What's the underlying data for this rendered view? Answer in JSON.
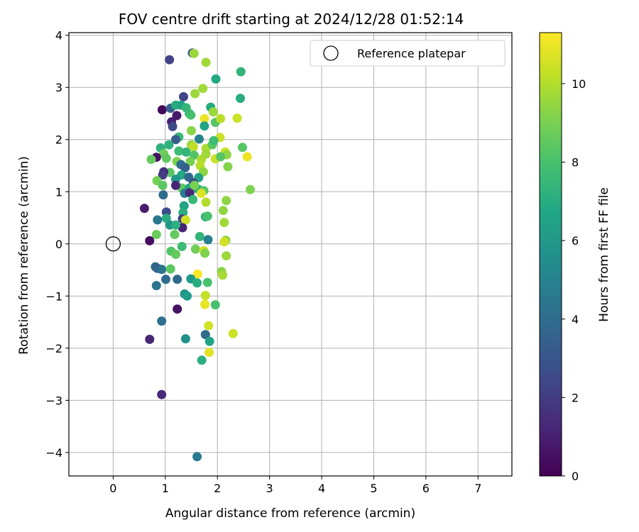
{
  "chart_data": {
    "type": "scatter",
    "title": "FOV centre drift starting at 2024/12/28 01:52:14",
    "xlabel": "Angular distance from reference (arcmin)",
    "ylabel": "Rotation from reference (arcmin)",
    "colorbar_label": "Hours from first FF file",
    "xlim": [
      -0.85,
      7.65
    ],
    "ylim": [
      -4.45,
      4.05
    ],
    "xticks": [
      0,
      1,
      2,
      3,
      4,
      5,
      6,
      7
    ],
    "yticks": [
      -4,
      -3,
      -2,
      -1,
      0,
      1,
      2,
      3,
      4
    ],
    "colorbar_range": [
      0,
      11.3
    ],
    "colorbar_ticks": [
      0,
      2,
      4,
      6,
      8,
      10
    ],
    "colormap": "viridis",
    "grid": true,
    "legend": {
      "location": "upper right",
      "entries": [
        "Reference platepar"
      ]
    },
    "reference_point": {
      "x": 0,
      "y": 0
    },
    "points": [
      [
        1.08,
        3.53,
        2.3
      ],
      [
        1.52,
        3.66,
        3.0
      ],
      [
        1.55,
        3.65,
        9.6
      ],
      [
        1.78,
        3.48,
        9.7
      ],
      [
        1.97,
        3.16,
        6.8
      ],
      [
        2.45,
        3.3,
        7.3
      ],
      [
        2.44,
        2.79,
        7.0
      ],
      [
        1.35,
        2.82,
        2.3
      ],
      [
        1.72,
        2.98,
        9.7
      ],
      [
        1.57,
        2.88,
        9.6
      ],
      [
        0.94,
        2.57,
        0.2
      ],
      [
        1.1,
        2.6,
        3.5
      ],
      [
        1.2,
        2.66,
        7.0
      ],
      [
        1.3,
        2.66,
        6.6
      ],
      [
        1.4,
        2.61,
        7.4
      ],
      [
        1.46,
        2.5,
        7.6
      ],
      [
        1.87,
        2.62,
        6.9
      ],
      [
        1.92,
        2.53,
        9.6
      ],
      [
        1.22,
        2.46,
        0.8
      ],
      [
        1.12,
        2.34,
        1.0
      ],
      [
        1.75,
        2.4,
        11.0
      ],
      [
        1.96,
        2.33,
        8.3
      ],
      [
        2.06,
        2.4,
        10.1
      ],
      [
        2.38,
        2.41,
        10.4
      ],
      [
        1.14,
        2.25,
        2.5
      ],
      [
        1.75,
        2.26,
        6.6
      ],
      [
        1.5,
        2.17,
        9.3
      ],
      [
        1.26,
        2.05,
        7.6
      ],
      [
        1.2,
        2.0,
        3.3
      ],
      [
        1.65,
        2.01,
        5.0
      ],
      [
        2.05,
        2.04,
        10.4
      ],
      [
        2.48,
        1.85,
        8.3
      ],
      [
        0.91,
        1.84,
        7.2
      ],
      [
        0.97,
        1.73,
        8.8
      ],
      [
        1.07,
        1.9,
        7.2
      ],
      [
        1.5,
        1.9,
        9.5
      ],
      [
        1.54,
        1.86,
        10.2
      ],
      [
        1.78,
        1.83,
        9.9
      ],
      [
        1.9,
        1.9,
        8.4
      ],
      [
        1.93,
        1.98,
        7.7
      ],
      [
        2.15,
        1.76,
        10.4
      ],
      [
        2.18,
        1.71,
        9.4
      ],
      [
        2.57,
        1.67,
        11.0
      ],
      [
        0.83,
        1.66,
        0.5
      ],
      [
        0.73,
        1.62,
        8.6
      ],
      [
        1.02,
        1.64,
        8.5
      ],
      [
        1.26,
        1.78,
        7.7
      ],
      [
        1.4,
        1.76,
        7.4
      ],
      [
        1.55,
        1.7,
        8.2
      ],
      [
        1.69,
        1.62,
        9.9
      ],
      [
        1.96,
        1.63,
        10.4
      ],
      [
        2.06,
        1.67,
        8.3
      ],
      [
        1.22,
        1.58,
        9.1
      ],
      [
        1.3,
        1.52,
        4.1
      ],
      [
        1.48,
        1.58,
        9.0
      ],
      [
        1.67,
        1.5,
        10.1
      ],
      [
        1.38,
        1.46,
        3.4
      ],
      [
        2.2,
        1.48,
        9.2
      ],
      [
        1.09,
        1.37,
        8.3
      ],
      [
        0.97,
        1.38,
        1.5
      ],
      [
        0.95,
        1.32,
        2.0
      ],
      [
        1.31,
        1.32,
        6.8
      ],
      [
        1.45,
        1.28,
        3.9
      ],
      [
        1.73,
        1.38,
        9.4
      ],
      [
        1.64,
        1.27,
        6.4
      ],
      [
        0.84,
        1.21,
        8.9
      ],
      [
        0.95,
        1.12,
        8.4
      ],
      [
        1.2,
        1.24,
        5.9
      ],
      [
        1.54,
        1.17,
        2.8
      ],
      [
        1.32,
        1.07,
        8.5
      ],
      [
        1.46,
        1.07,
        6.7
      ],
      [
        1.63,
        1.05,
        7.0
      ],
      [
        1.74,
        1.02,
        8.4
      ],
      [
        1.69,
        0.97,
        10.7
      ],
      [
        2.63,
        1.04,
        9.1
      ],
      [
        1.2,
        1.12,
        1.2
      ],
      [
        0.96,
        0.94,
        4.0
      ],
      [
        1.37,
        0.97,
        4.7
      ],
      [
        1.47,
        0.98,
        1.3
      ],
      [
        1.56,
        1.12,
        9.0
      ],
      [
        2.17,
        0.83,
        9.4
      ],
      [
        1.36,
        0.73,
        6.6
      ],
      [
        1.53,
        0.85,
        7.5
      ],
      [
        1.78,
        0.8,
        10.0
      ],
      [
        0.6,
        0.68,
        0.9
      ],
      [
        1.02,
        0.61,
        2.6
      ],
      [
        1.34,
        0.6,
        7.1
      ],
      [
        2.11,
        0.64,
        9.4
      ],
      [
        1.02,
        0.49,
        7.0
      ],
      [
        1.33,
        0.48,
        2.2
      ],
      [
        1.77,
        0.52,
        7.4
      ],
      [
        1.81,
        0.53,
        8.0
      ],
      [
        1.09,
        0.36,
        5.9
      ],
      [
        0.85,
        0.46,
        4.5
      ],
      [
        1.39,
        0.46,
        10.5
      ],
      [
        1.33,
        0.31,
        1.1
      ],
      [
        1.2,
        0.36,
        7.1
      ],
      [
        2.13,
        0.41,
        9.7
      ],
      [
        1.18,
        0.18,
        8.6
      ],
      [
        0.83,
        0.18,
        8.7
      ],
      [
        1.66,
        0.14,
        7.3
      ],
      [
        1.82,
        0.08,
        4.9
      ],
      [
        0.7,
        0.06,
        0.4
      ],
      [
        2.16,
        0.07,
        9.4
      ],
      [
        2.13,
        0.04,
        10.5
      ],
      [
        1.32,
        -0.05,
        7.7
      ],
      [
        1.58,
        -0.1,
        8.8
      ],
      [
        1.74,
        -0.13,
        10.5
      ],
      [
        1.11,
        -0.14,
        8.2
      ],
      [
        1.2,
        -0.2,
        8.6
      ],
      [
        1.76,
        -0.18,
        9.1
      ],
      [
        2.17,
        -0.23,
        9.6
      ],
      [
        0.81,
        -0.44,
        4.0
      ],
      [
        0.85,
        -0.47,
        3.5
      ],
      [
        0.93,
        -0.49,
        4.3
      ],
      [
        1.1,
        -0.48,
        8.4
      ],
      [
        2.08,
        -0.53,
        9.3
      ],
      [
        2.1,
        -0.6,
        9.8
      ],
      [
        1.62,
        -0.58,
        11.3
      ],
      [
        1.01,
        -0.68,
        4.0
      ],
      [
        1.23,
        -0.68,
        3.8
      ],
      [
        1.49,
        -0.67,
        6.1
      ],
      [
        1.61,
        -0.75,
        7.0
      ],
      [
        1.81,
        -0.74,
        8.0
      ],
      [
        0.83,
        -0.8,
        4.3
      ],
      [
        1.37,
        -0.96,
        5.8
      ],
      [
        1.42,
        -1.0,
        6.2
      ],
      [
        1.77,
        -0.99,
        10.3
      ],
      [
        1.76,
        -1.16,
        10.9
      ],
      [
        1.96,
        -1.17,
        8.0
      ],
      [
        1.23,
        -1.25,
        0.5
      ],
      [
        0.93,
        -1.48,
        4.1
      ],
      [
        1.83,
        -1.57,
        10.5
      ],
      [
        1.77,
        -1.74,
        3.9
      ],
      [
        2.3,
        -1.72,
        10.4
      ],
      [
        0.7,
        -1.83,
        1.2
      ],
      [
        1.39,
        -1.82,
        5.6
      ],
      [
        1.85,
        -1.87,
        6.5
      ],
      [
        1.84,
        -2.08,
        10.8
      ],
      [
        1.7,
        -2.23,
        7.1
      ],
      [
        0.93,
        -2.89,
        1.3
      ],
      [
        1.61,
        -4.08,
        4.6
      ],
      [
        1.49,
        2.47,
        7.9
      ],
      [
        1.78,
        1.72,
        9.7
      ]
    ]
  }
}
